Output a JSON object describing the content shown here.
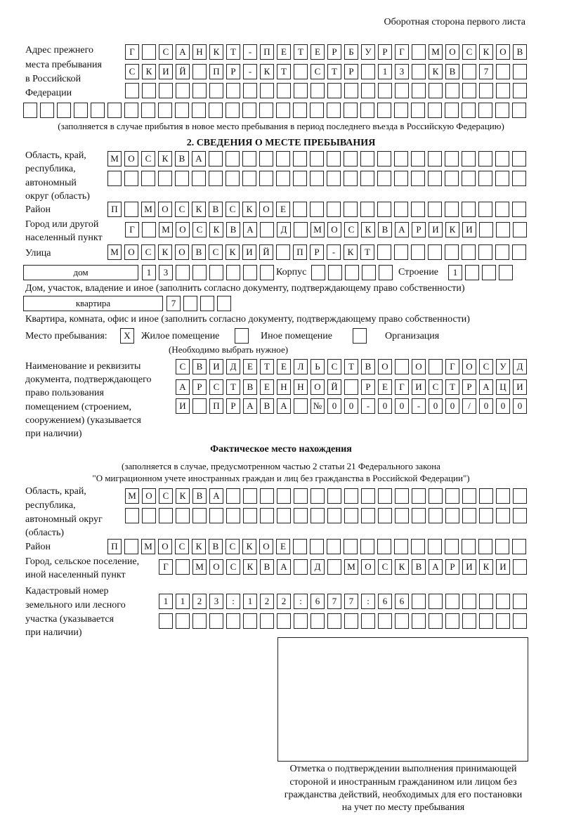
{
  "header": "Оборотная сторона первого листа",
  "previous_address": {
    "label": [
      "Адрес прежнего",
      "места пребывания",
      "в Российской",
      "Федерации"
    ],
    "rows": [
      "Г САНКТ-ПЕТЕРБУРГ МОСКОВ",
      "СКИЙ ПР-КТ СТР 13 КВ 7  ",
      "                        ",
      "                              "
    ],
    "note": "(заполняется в случае прибытия в новое место пребывания в период последнего въезда в Российскую Федерацию)"
  },
  "section2": {
    "title": "2. СВЕДЕНИЯ О МЕСТЕ ПРЕБЫВАНИЯ",
    "region_label": [
      "Область, край,",
      "республика,",
      "автономный",
      "округ (область)"
    ],
    "region_rows": [
      "МОСКВА                   ",
      "                         "
    ],
    "district_label": "Район",
    "district_row": "П МОСКВСКОЕ              ",
    "city_label": [
      "Город или другой",
      "населенный пункт"
    ],
    "city_row": "Г МОСКВА Д МОСКВАРИКИ   ",
    "street_label": "Улица",
    "street_row": "МОСКОВСКИЙ ПР-КТ         ",
    "house_type": "дом",
    "house_number": "13      ",
    "korpus_label": "Корпус",
    "korpus": "     ",
    "building_label": "Строение",
    "building": "1   ",
    "house_note": "Дом, участок, владение и иное (заполнить согласно документу, подтверждающему право собственности)",
    "apartment_type": "квартира",
    "apartment_number": "7   ",
    "apartment_note": "Квартира, комната, офис и иное (заполнить согласно документу, подтверждающему право собственности)",
    "stay_place_label": "Место пребывания:",
    "options": [
      {
        "label": "Жилое помещение",
        "mark": "X"
      },
      {
        "label": "Иное помещение",
        "mark": ""
      },
      {
        "label": "Организация",
        "mark": ""
      }
    ],
    "choose_note": "(Необходимо выбрать нужное)",
    "document_label": [
      "Наименование и реквизиты",
      "документа, подтверждающего",
      "право пользования",
      "помещением (строением,",
      "сооружением) (указывается",
      "при наличии)"
    ],
    "document_rows": [
      "СВИДЕТЕЛЬСТВО О ГОСУД",
      "АРСТВЕННОЙ РЕГИСТРАЦИ",
      "И ПРАВА №00-00-00/000"
    ]
  },
  "actual": {
    "title": "Фактическое место нахождения",
    "note": [
      "(заполняется в случае, предусмотренном частью 2 статьи 21 Федерального закона",
      "\"О миграционном учете иностранных граждан и лиц без гражданства в Российской Федерации\")"
    ],
    "region_label": [
      "Область, край,",
      "республика,",
      "автономный округ",
      "(область)"
    ],
    "region_rows": [
      "МОСКВА                  ",
      "                        "
    ],
    "district_label": "Район",
    "district_row": "П МОСКВСКОЕ              ",
    "city_label": [
      "Город, сельское поселение,",
      "иной населенный пункт"
    ],
    "city_row": "Г МОСКВА Д МОСКВАРИКИ ",
    "cadastral_label": [
      "Кадастровый номер",
      "земельного или лесного",
      "участка (указывается",
      "при наличии)"
    ],
    "cadastral_rows": [
      "1123:122:677:66       ",
      "                      "
    ]
  },
  "confirmation_caption": [
    "Отметка о подтверждении выполнения принимающей",
    "стороной и иностранным гражданином или лицом без",
    "гражданства действий, необходимых для его постановки",
    "на учет по месту пребывания"
  ]
}
